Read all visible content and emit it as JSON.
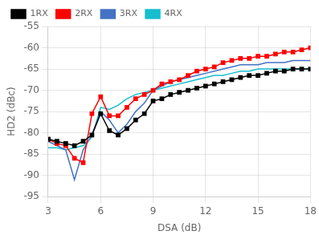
{
  "chart_data": {
    "type": "line",
    "xlabel": "DSA (dB)",
    "ylabel": "HD2 (dBc)",
    "x": [
      3,
      3.5,
      4,
      4.5,
      5,
      5.5,
      6,
      6.5,
      7,
      7.5,
      8,
      8.5,
      9,
      9.5,
      10,
      10.5,
      11,
      11.5,
      12,
      12.5,
      13,
      13.5,
      14,
      14.5,
      15,
      15.5,
      16,
      16.5,
      17,
      17.5,
      18
    ],
    "series": [
      {
        "name": "1RX",
        "color": "#000000",
        "marker": "square",
        "values": [
          -81.5,
          -82,
          -82.5,
          -83,
          -82,
          -80.5,
          -75.5,
          -79.5,
          -80.5,
          -79,
          -77,
          -75.5,
          -72.5,
          -72,
          -71,
          -70.5,
          -70,
          -69.5,
          -69,
          -68.5,
          -68,
          -67.5,
          -67,
          -66.5,
          -66.5,
          -66,
          -65.5,
          -65.5,
          -65,
          -65,
          -65
        ]
      },
      {
        "name": "2RX",
        "color": "#ff0000",
        "marker": "square",
        "values": [
          -81.5,
          -82.5,
          -83,
          -86,
          -87,
          -75.5,
          -71.5,
          -76,
          -76,
          -74,
          -72,
          -71,
          -70,
          -68.5,
          -68,
          -67.5,
          -66.5,
          -65.5,
          -65,
          -64.5,
          -63.5,
          -63,
          -62.5,
          -62.5,
          -62,
          -62,
          -61.5,
          -61,
          -61,
          -60.5,
          -60
        ]
      },
      {
        "name": "3RX",
        "color": "#4472c4",
        "marker": "none",
        "values": [
          -82,
          -83,
          -84,
          -91,
          -84,
          -80.5,
          -75,
          -77,
          -80,
          -78,
          -75,
          -73,
          -70,
          -69,
          -68,
          -67.5,
          -67,
          -66.5,
          -66,
          -65.5,
          -65,
          -64.5,
          -64,
          -64,
          -64,
          -63.5,
          -63.5,
          -63.5,
          -63,
          -63,
          -63
        ]
      },
      {
        "name": "4RX",
        "color": "#17becf",
        "marker": "none",
        "values": [
          -83.5,
          -83.5,
          -84,
          -83.5,
          -83,
          -81,
          -74,
          -74.5,
          -73.5,
          -72,
          -71,
          -70.5,
          -70,
          -69.5,
          -69,
          -68.5,
          -68,
          -67.5,
          -67,
          -66.5,
          -66.5,
          -66,
          -65.5,
          -65.5,
          -65,
          -65,
          -65,
          -65,
          -65,
          -65,
          -65
        ]
      }
    ],
    "xlim": [
      3,
      18
    ],
    "ylim": [
      -95,
      -55
    ],
    "xticks": [
      3,
      6,
      9,
      12,
      15,
      18
    ],
    "yticks": [
      -95,
      -90,
      -85,
      -80,
      -75,
      -70,
      -65,
      -60,
      -55
    ],
    "grid": true,
    "legend": "upper left"
  }
}
